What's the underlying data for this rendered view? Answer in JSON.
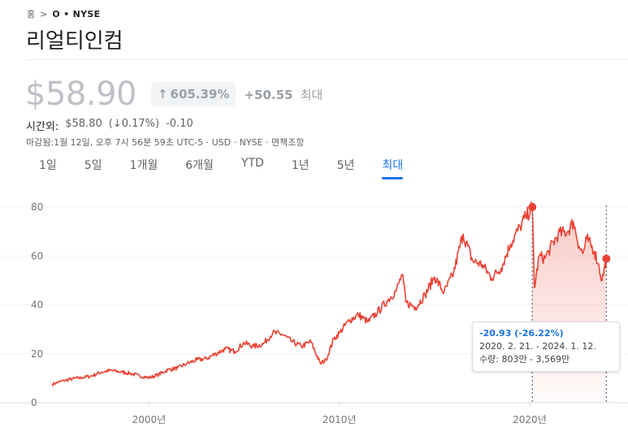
{
  "breadcrumb": {
    "home": "홈",
    "separator": ">",
    "ticker": "O • NYSE"
  },
  "title": "리얼티인컴",
  "quote": {
    "price": "$58.90",
    "change_pct": "605.39%",
    "change_abs": "+50.55",
    "period": "최대"
  },
  "after_hours": {
    "label": "시간외:",
    "price": "$58.80",
    "change_pct": "(↓0.17%)",
    "change_abs": "-0.10"
  },
  "closing": "마감됨:1월 12일, 오후 7시 56분 59초 UTC-5 · USD · NYSE · 면책조항",
  "tabs": [
    {
      "label": "1일",
      "active": false
    },
    {
      "label": "5일",
      "active": false
    },
    {
      "label": "1개월",
      "active": false
    },
    {
      "label": "6개월",
      "active": false
    },
    {
      "label": "YTD",
      "active": false
    },
    {
      "label": "1년",
      "active": false
    },
    {
      "label": "5년",
      "active": false
    },
    {
      "label": "최대",
      "active": true
    }
  ],
  "tooltip": {
    "change": "-20.93 (-26.22%)",
    "range": "2020. 2. 21. - 2024. 1. 12.",
    "volume": "수량: 803만 - 3,569만"
  },
  "colors": {
    "line": "#ea4335",
    "accent": "#1a73e8",
    "fill": "#fbd4d1"
  },
  "chart_data": {
    "type": "line",
    "x_ticks": [
      "2000년",
      "2010년",
      "2020년"
    ],
    "x_tick_values": [
      2000,
      2010,
      2020
    ],
    "y_ticks": [
      0,
      20,
      40,
      60,
      80
    ],
    "ylim": [
      0,
      82
    ],
    "xlim": [
      1994.9,
      2024.1
    ],
    "grid": true,
    "selection": {
      "start": 2020.14,
      "end": 2024.03
    },
    "series": [
      {
        "values": [
          [
            1994.9,
            7.5
          ],
          [
            1995.5,
            9.0
          ],
          [
            1996.0,
            9.8
          ],
          [
            1996.5,
            10.3
          ],
          [
            1997.0,
            11.0
          ],
          [
            1997.5,
            12.5
          ],
          [
            1998.0,
            13.2
          ],
          [
            1998.5,
            12.6
          ],
          [
            1999.0,
            12.0
          ],
          [
            1999.5,
            11.0
          ],
          [
            2000.0,
            10.2
          ],
          [
            2000.5,
            11.5
          ],
          [
            2001.0,
            13.5
          ],
          [
            2001.5,
            14.2
          ],
          [
            2002.0,
            16.0
          ],
          [
            2002.5,
            17.5
          ],
          [
            2003.0,
            18.0
          ],
          [
            2003.5,
            20.0
          ],
          [
            2004.0,
            22.0
          ],
          [
            2004.5,
            21.0
          ],
          [
            2005.0,
            24.5
          ],
          [
            2005.5,
            23.0
          ],
          [
            2006.0,
            24.0
          ],
          [
            2006.5,
            28.5
          ],
          [
            2007.0,
            28.0
          ],
          [
            2007.5,
            25.0
          ],
          [
            2008.0,
            23.0
          ],
          [
            2008.5,
            25.0
          ],
          [
            2009.0,
            16.0
          ],
          [
            2009.3,
            17.5
          ],
          [
            2009.7,
            26.0
          ],
          [
            2010.0,
            28.5
          ],
          [
            2010.5,
            33.5
          ],
          [
            2011.0,
            36.0
          ],
          [
            2011.5,
            33.0
          ],
          [
            2012.0,
            37.0
          ],
          [
            2012.5,
            41.5
          ],
          [
            2013.0,
            46.0
          ],
          [
            2013.3,
            52.5
          ],
          [
            2013.5,
            41.0
          ],
          [
            2014.0,
            39.0
          ],
          [
            2014.5,
            44.0
          ],
          [
            2015.0,
            51.5
          ],
          [
            2015.5,
            45.0
          ],
          [
            2016.0,
            53.0
          ],
          [
            2016.5,
            69.0
          ],
          [
            2017.0,
            58.0
          ],
          [
            2017.5,
            56.5
          ],
          [
            2018.0,
            51.0
          ],
          [
            2018.5,
            55.0
          ],
          [
            2019.0,
            65.0
          ],
          [
            2019.5,
            72.0
          ],
          [
            2019.8,
            76.0
          ],
          [
            2020.14,
            80.0
          ],
          [
            2020.25,
            47.0
          ],
          [
            2020.5,
            60.0
          ],
          [
            2020.8,
            59.0
          ],
          [
            2021.0,
            62.0
          ],
          [
            2021.5,
            69.0
          ],
          [
            2022.0,
            70.0
          ],
          [
            2022.3,
            74.0
          ],
          [
            2022.6,
            64.0
          ],
          [
            2022.8,
            61.0
          ],
          [
            2023.0,
            67.0
          ],
          [
            2023.4,
            62.0
          ],
          [
            2023.6,
            57.0
          ],
          [
            2023.8,
            50.0
          ],
          [
            2024.03,
            58.9
          ]
        ]
      }
    ]
  }
}
